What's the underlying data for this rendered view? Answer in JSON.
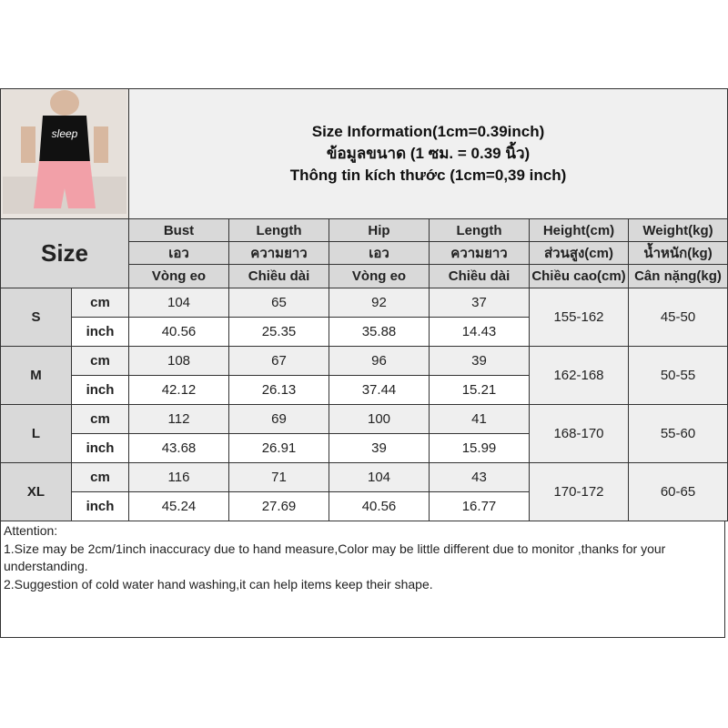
{
  "title_lines": [
    "Size Information(1cm=0.39inch)",
    "ข้อมูลขนาด (1 ซม. = 0.39 นิ้ว)",
    "Thông tin kích thước (1cm=0,39 inch)"
  ],
  "size_label": "Size",
  "headers": [
    [
      "Bust",
      "Length",
      "Hip",
      "Length",
      "Height(cm)",
      "Weight(kg)"
    ],
    [
      "เอว",
      "ความยาว",
      "เอว",
      "ความยาว",
      "ส่วนสูง(cm)",
      "น้ำหนัก(kg)"
    ],
    [
      "Vòng eo",
      "Chiều dài",
      "Vòng eo",
      "Chiều dài",
      "Chiều cao(cm)",
      "Cân nặng(kg)"
    ]
  ],
  "rows": [
    {
      "size": "S",
      "cm_label": "cm",
      "inch_label": "inch",
      "cm": [
        "104",
        "65",
        "92",
        "37"
      ],
      "inch": [
        "40.56",
        "25.35",
        "35.88",
        "14.43"
      ],
      "height": "155-162",
      "weight": "45-50"
    },
    {
      "size": "M",
      "cm_label": "cm",
      "inch_label": "inch",
      "cm": [
        "108",
        "67",
        "96",
        "39"
      ],
      "inch": [
        "42.12",
        "26.13",
        "37.44",
        "15.21"
      ],
      "height": "162-168",
      "weight": "50-55"
    },
    {
      "size": "L",
      "cm_label": "cm",
      "inch_label": "inch",
      "cm": [
        "112",
        "69",
        "100",
        "41"
      ],
      "inch": [
        "43.68",
        "26.91",
        "39",
        "15.99"
      ],
      "height": "168-170",
      "weight": "55-60"
    },
    {
      "size": "XL",
      "cm_label": "cm",
      "inch_label": "inch",
      "cm": [
        "116",
        "71",
        "104",
        "43"
      ],
      "inch": [
        "45.24",
        "27.69",
        "40.56",
        "16.77"
      ],
      "height": "170-172",
      "weight": "60-65"
    }
  ],
  "attention": [
    "Attention:",
    "1.Size may be 2cm/1inch inaccuracy due to hand measure,Color may be little different due to monitor ,thanks for your understanding.",
    "2.Suggestion of cold water hand washing,it can help items keep their shape."
  ],
  "product_image_lettering": "sleep"
}
